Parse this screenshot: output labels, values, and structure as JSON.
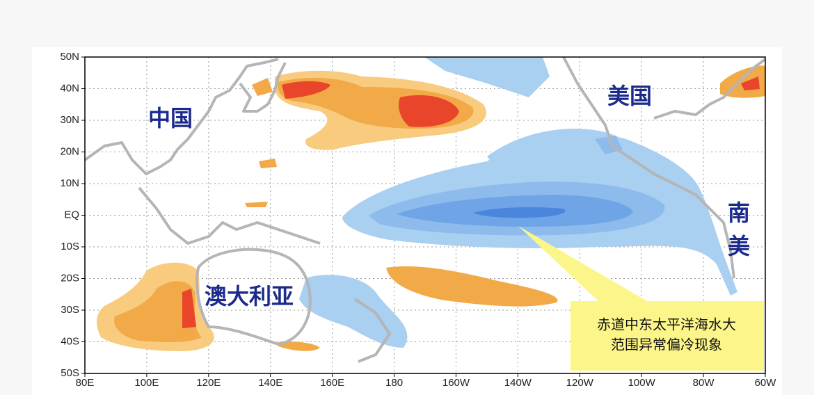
{
  "map": {
    "lat_labels": [
      "50N",
      "40N",
      "30N",
      "20N",
      "10N",
      "EQ",
      "10S",
      "20S",
      "30S",
      "40S",
      "50S"
    ],
    "lon_labels": [
      "80E",
      "100E",
      "120E",
      "140E",
      "160E",
      "180",
      "160W",
      "140W",
      "120W",
      "100W",
      "80W",
      "60W"
    ],
    "regions": {
      "china": "中国",
      "usa": "美国",
      "south_america_1": "南",
      "south_america_2": "美",
      "australia": "澳大利亚"
    },
    "annotation": [
      "赤道中东太平洋海水大",
      "范围异常偏冷现象"
    ]
  }
}
